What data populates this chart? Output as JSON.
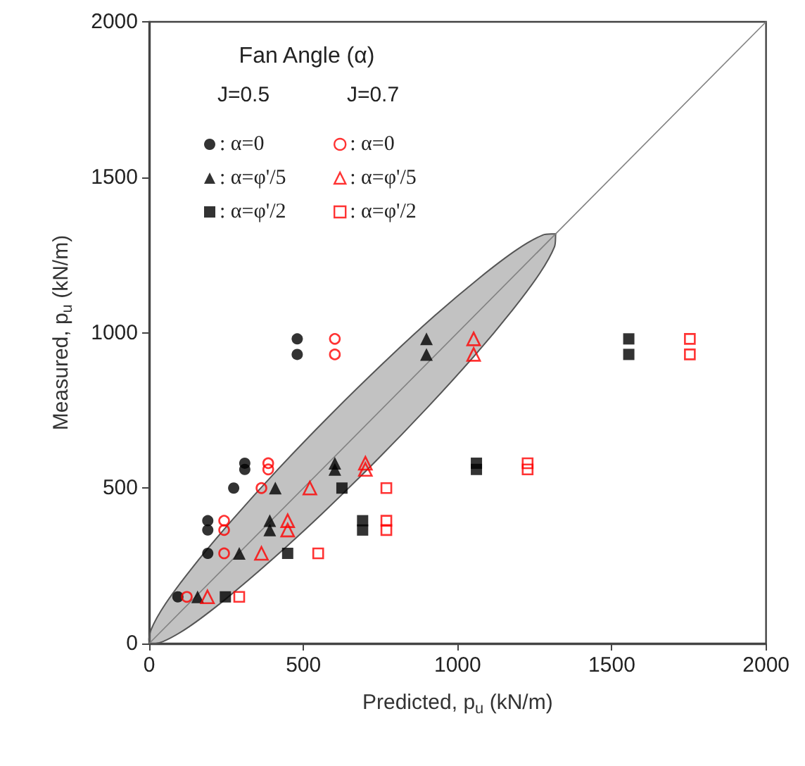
{
  "chart_data": {
    "type": "scatter",
    "xlabel": "Predicted, p$_{u}$ (kN/m)",
    "ylabel": "Measured, p$_{u}$ (kN/m)",
    "legend_title": "Fan Angle (α)",
    "annotations": [
      "J=0.5",
      "J=0.7"
    ],
    "xlim": [
      0,
      2000
    ],
    "ylim": [
      0,
      2000
    ],
    "xticks": [
      0,
      500,
      1000,
      1500,
      2000
    ],
    "yticks": [
      0,
      500,
      1000,
      1500,
      2000
    ],
    "grid": false,
    "legend": "top left",
    "series": [
      {
        "type": "line",
        "color": "#808080",
        "x": [
          0,
          2000
        ],
        "values": [
          0,
          2000
        ]
      },
      {
        "type": "area",
        "color": "#555555",
        "x": [
          1318,
          1276,
          1192,
          1073,
          924,
          759,
          586,
          418,
          267,
          143,
          53,
          6,
          2,
          44,
          128,
          248,
          395,
          561,
          734,
          902,
          1053,
          1178,
          1267,
          1314,
          1318
        ],
        "values": [
          1318,
          1314,
          1267,
          1178,
          1053,
          902,
          734,
          561,
          395,
          248,
          128,
          44,
          2,
          6,
          53,
          143,
          267,
          418,
          586,
          759,
          924,
          1073,
          1192,
          1276,
          1318
        ]
      },
      {
        "name": ": α=0",
        "color": "#000000",
        "marker": "circle",
        "x": [
          93,
          190,
          190,
          190,
          274,
          310,
          310,
          480,
          480
        ],
        "values": [
          150,
          290,
          365,
          395,
          500,
          560,
          580,
          930,
          980
        ]
      },
      {
        "name": ": α=φ'/5",
        "color": "#000000",
        "marker": "triangle",
        "x": [
          157,
          292,
          391,
          391,
          409,
          602,
          602,
          899,
          899
        ],
        "values": [
          150,
          290,
          365,
          395,
          500,
          560,
          580,
          930,
          980
        ]
      },
      {
        "name": ": α=φ'/2",
        "color": "#000000",
        "marker": "square",
        "x": [
          247,
          449,
          692,
          692,
          625,
          1061,
          1061,
          1555,
          1555
        ],
        "values": [
          150,
          290,
          365,
          395,
          500,
          560,
          580,
          930,
          980
        ]
      },
      {
        "name": ": α=0",
        "color": "#ff0000",
        "marker": "circle",
        "x": [
          122,
          243,
          243,
          243,
          364,
          386,
          386,
          602,
          602
        ],
        "values": [
          150,
          290,
          365,
          395,
          500,
          560,
          580,
          930,
          980
        ]
      },
      {
        "name": ": α=φ'/5",
        "color": "#ff0000",
        "marker": "triangle",
        "x": [
          189,
          364,
          449,
          449,
          521,
          701,
          701,
          1052,
          1052
        ],
        "values": [
          150,
          290,
          365,
          395,
          500,
          560,
          580,
          930,
          980
        ]
      },
      {
        "name": ": α=φ'/2",
        "color": "#ff0000",
        "marker": "square",
        "x": [
          292,
          548,
          769,
          769,
          769,
          1227,
          1227,
          1753,
          1753
        ],
        "values": [
          150,
          290,
          365,
          395,
          500,
          560,
          580,
          930,
          980
        ]
      }
    ]
  }
}
